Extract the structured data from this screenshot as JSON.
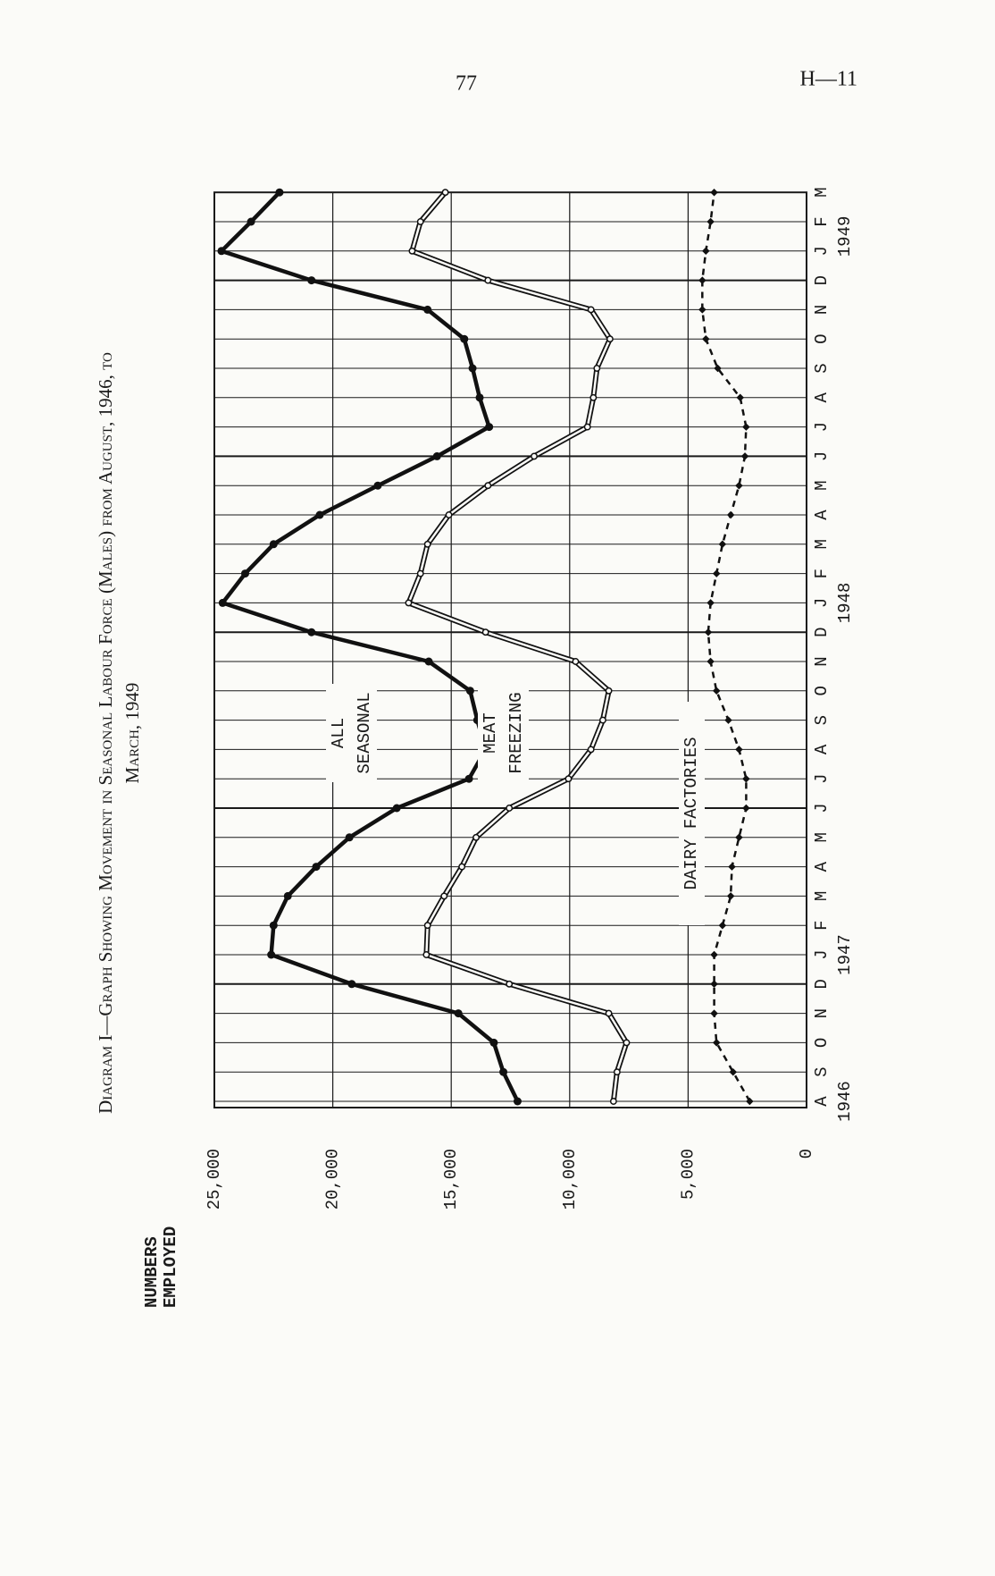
{
  "header": {
    "page_number": "77",
    "reference": "H—11"
  },
  "chart_data": {
    "type": "line",
    "title": "Diagram I—Graph Showing Movement in Seasonal Labour Force (Males) from August, 1946, to",
    "subtitle": "March, 1949",
    "ylabel": "NUMBERS EMPLOYED",
    "categories": [
      "A",
      "S",
      "O",
      "N",
      "D",
      "J",
      "F",
      "M",
      "A",
      "M",
      "J",
      "J",
      "A",
      "S",
      "O",
      "N",
      "D",
      "J",
      "F",
      "M",
      "A",
      "M",
      "J",
      "J",
      "A",
      "S",
      "O",
      "N",
      "D",
      "J",
      "F",
      "M"
    ],
    "years": [
      "1946",
      "1947",
      "1948",
      "1949"
    ],
    "ylim": [
      0,
      25000
    ],
    "yticks": [
      0,
      {
        "value": 5000,
        "label": "5,000"
      },
      {
        "value": 10000,
        "label": "10,000"
      },
      {
        "value": 15000,
        "label": "15,000"
      },
      {
        "value": 20000,
        "label": "20,000"
      },
      {
        "value": 25000,
        "label": "25,000"
      }
    ],
    "grid": true,
    "series": [
      {
        "name": "ALL SEASONAL",
        "color": "#111111",
        "style": "solid",
        "values": [
          12200,
          12800,
          13200,
          14700,
          19200,
          22600,
          22500,
          21900,
          20700,
          19300,
          17300,
          14250,
          13550,
          13900,
          14200,
          15950,
          20900,
          24650,
          23700,
          22500,
          20550,
          18100,
          15600,
          13400,
          13800,
          14100,
          14450,
          16000,
          20900,
          24700,
          23450,
          22250
        ]
      },
      {
        "name": "MEAT FREEZING",
        "color": "#111111",
        "style": "double",
        "values": [
          8150,
          8000,
          7600,
          8350,
          12550,
          16050,
          16000,
          15300,
          14550,
          13950,
          12550,
          10050,
          9100,
          8600,
          8350,
          9750,
          13550,
          16800,
          16300,
          16000,
          15100,
          13450,
          11500,
          9250,
          9000,
          8850,
          8300,
          9100,
          13450,
          16650,
          16300,
          15250
        ]
      },
      {
        "name": "DAIRY FACTORIES",
        "color": "#111111",
        "style": "dashed",
        "values": [
          2400,
          3100,
          3800,
          3900,
          3900,
          3900,
          3550,
          3200,
          3150,
          2850,
          2550,
          2550,
          2850,
          3300,
          3800,
          4050,
          4150,
          4050,
          3800,
          3550,
          3200,
          2850,
          2600,
          2550,
          2800,
          3750,
          4250,
          4400,
          4400,
          4250,
          4050,
          3900
        ]
      }
    ]
  }
}
